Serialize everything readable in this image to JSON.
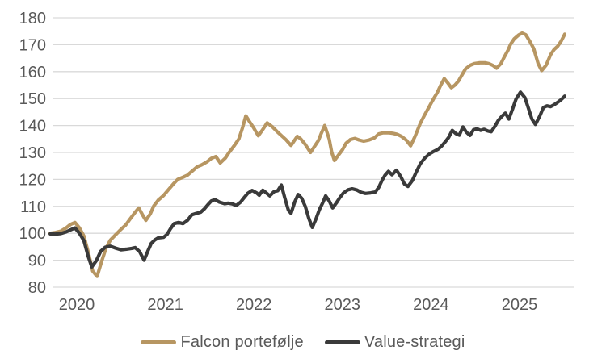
{
  "colors": {
    "background": "#ffffff",
    "gridline": "#d9d9d9",
    "axis_text": "#595959",
    "falcon": "#b79662",
    "value": "#3a3a3a"
  },
  "chart_data": {
    "type": "line",
    "title": "",
    "xlabel": "",
    "ylabel": "",
    "grid": "horizontal",
    "legend_position": "bottom-center",
    "y_axis": {
      "min": 80,
      "max": 180,
      "step": 10,
      "tick_labels": [
        "80",
        "90",
        "100",
        "110",
        "120",
        "130",
        "140",
        "150",
        "160",
        "170",
        "180"
      ]
    },
    "x_axis": {
      "ticks": [
        2020,
        2021,
        2022,
        2023,
        2024,
        2025
      ],
      "tick_labels": [
        "2020",
        "2021",
        "2022",
        "2023",
        "2024",
        "2025"
      ]
    },
    "series": [
      {
        "name": "Falcon portefølje",
        "color": "#b79662",
        "points": [
          [
            2019.7,
            100.0
          ],
          [
            2019.76,
            100.3
          ],
          [
            2019.82,
            100.8
          ],
          [
            2019.88,
            102.0
          ],
          [
            2019.93,
            103.3
          ],
          [
            2019.98,
            104.0
          ],
          [
            2020.03,
            102.0
          ],
          [
            2020.08,
            99.0
          ],
          [
            2020.13,
            93.0
          ],
          [
            2020.18,
            86.0
          ],
          [
            2020.23,
            84.0
          ],
          [
            2020.28,
            89.5
          ],
          [
            2020.33,
            94.5
          ],
          [
            2020.38,
            97.5
          ],
          [
            2020.44,
            99.5
          ],
          [
            2020.5,
            101.5
          ],
          [
            2020.55,
            103.0
          ],
          [
            2020.6,
            105.2
          ],
          [
            2020.66,
            107.8
          ],
          [
            2020.7,
            109.4
          ],
          [
            2020.74,
            107.0
          ],
          [
            2020.78,
            104.8
          ],
          [
            2020.83,
            107.2
          ],
          [
            2020.87,
            110.2
          ],
          [
            2020.92,
            112.3
          ],
          [
            2020.98,
            114.0
          ],
          [
            2021.03,
            116.0
          ],
          [
            2021.09,
            118.3
          ],
          [
            2021.14,
            120.0
          ],
          [
            2021.2,
            120.8
          ],
          [
            2021.25,
            121.6
          ],
          [
            2021.3,
            123.0
          ],
          [
            2021.36,
            124.7
          ],
          [
            2021.41,
            125.4
          ],
          [
            2021.47,
            126.5
          ],
          [
            2021.52,
            127.8
          ],
          [
            2021.57,
            128.5
          ],
          [
            2021.62,
            126.1
          ],
          [
            2021.68,
            128.0
          ],
          [
            2021.72,
            130.0
          ],
          [
            2021.78,
            132.6
          ],
          [
            2021.83,
            135.0
          ],
          [
            2021.87,
            139.0
          ],
          [
            2021.91,
            143.6
          ],
          [
            2021.95,
            141.5
          ],
          [
            2022.0,
            139.0
          ],
          [
            2022.05,
            136.2
          ],
          [
            2022.1,
            138.5
          ],
          [
            2022.15,
            141.0
          ],
          [
            2022.21,
            139.5
          ],
          [
            2022.26,
            137.8
          ],
          [
            2022.32,
            136.0
          ],
          [
            2022.36,
            134.8
          ],
          [
            2022.42,
            132.6
          ],
          [
            2022.49,
            136.0
          ],
          [
            2022.53,
            135.0
          ],
          [
            2022.58,
            133.0
          ],
          [
            2022.64,
            130.0
          ],
          [
            2022.68,
            132.0
          ],
          [
            2022.73,
            134.5
          ],
          [
            2022.76,
            137.0
          ],
          [
            2022.8,
            140.0
          ],
          [
            2022.85,
            135.0
          ],
          [
            2022.88,
            130.0
          ],
          [
            2022.91,
            127.0
          ],
          [
            2022.95,
            128.8
          ],
          [
            2023.0,
            131.0
          ],
          [
            2023.04,
            133.4
          ],
          [
            2023.09,
            134.8
          ],
          [
            2023.14,
            135.2
          ],
          [
            2023.19,
            134.6
          ],
          [
            2023.24,
            134.2
          ],
          [
            2023.3,
            134.6
          ],
          [
            2023.36,
            135.4
          ],
          [
            2023.41,
            136.9
          ],
          [
            2023.46,
            137.3
          ],
          [
            2023.52,
            137.3
          ],
          [
            2023.57,
            137.1
          ],
          [
            2023.62,
            136.7
          ],
          [
            2023.67,
            135.9
          ],
          [
            2023.72,
            134.6
          ],
          [
            2023.77,
            132.5
          ],
          [
            2023.82,
            136.0
          ],
          [
            2023.88,
            140.8
          ],
          [
            2023.93,
            144.0
          ],
          [
            2023.98,
            147.0
          ],
          [
            2024.03,
            150.0
          ],
          [
            2024.07,
            152.2
          ],
          [
            2024.11,
            155.0
          ],
          [
            2024.15,
            157.4
          ],
          [
            2024.19,
            155.8
          ],
          [
            2024.23,
            154.0
          ],
          [
            2024.27,
            155.0
          ],
          [
            2024.31,
            156.5
          ],
          [
            2024.35,
            158.8
          ],
          [
            2024.39,
            161.0
          ],
          [
            2024.44,
            162.3
          ],
          [
            2024.49,
            163.0
          ],
          [
            2024.55,
            163.3
          ],
          [
            2024.61,
            163.3
          ],
          [
            2024.66,
            162.9
          ],
          [
            2024.7,
            162.3
          ],
          [
            2024.74,
            161.3
          ],
          [
            2024.79,
            163.0
          ],
          [
            2024.83,
            165.6
          ],
          [
            2024.87,
            168.0
          ],
          [
            2024.9,
            170.2
          ],
          [
            2024.94,
            172.2
          ],
          [
            2024.99,
            173.6
          ],
          [
            2025.03,
            174.3
          ],
          [
            2025.07,
            173.7
          ],
          [
            2025.12,
            171.0
          ],
          [
            2025.16,
            168.6
          ],
          [
            2025.21,
            163.0
          ],
          [
            2025.25,
            160.4
          ],
          [
            2025.3,
            162.4
          ],
          [
            2025.35,
            166.3
          ],
          [
            2025.39,
            168.2
          ],
          [
            2025.43,
            169.4
          ],
          [
            2025.47,
            171.3
          ],
          [
            2025.51,
            173.9
          ]
        ]
      },
      {
        "name": "Value-strategi",
        "color": "#3a3a3a",
        "points": [
          [
            2019.7,
            99.8
          ],
          [
            2019.76,
            99.7
          ],
          [
            2019.82,
            99.9
          ],
          [
            2019.88,
            100.5
          ],
          [
            2019.93,
            101.3
          ],
          [
            2019.98,
            102.0
          ],
          [
            2020.03,
            100.0
          ],
          [
            2020.08,
            97.3
          ],
          [
            2020.13,
            91.4
          ],
          [
            2020.17,
            87.5
          ],
          [
            2020.22,
            89.8
          ],
          [
            2020.27,
            93.3
          ],
          [
            2020.32,
            94.8
          ],
          [
            2020.38,
            95.2
          ],
          [
            2020.44,
            94.5
          ],
          [
            2020.5,
            93.9
          ],
          [
            2020.56,
            94.1
          ],
          [
            2020.62,
            94.4
          ],
          [
            2020.66,
            94.7
          ],
          [
            2020.71,
            93.2
          ],
          [
            2020.76,
            90.0
          ],
          [
            2020.8,
            93.2
          ],
          [
            2020.84,
            96.2
          ],
          [
            2020.88,
            97.5
          ],
          [
            2020.92,
            98.3
          ],
          [
            2020.98,
            98.5
          ],
          [
            2021.02,
            99.6
          ],
          [
            2021.06,
            101.8
          ],
          [
            2021.1,
            103.6
          ],
          [
            2021.15,
            104.0
          ],
          [
            2021.2,
            103.6
          ],
          [
            2021.25,
            104.8
          ],
          [
            2021.3,
            106.9
          ],
          [
            2021.35,
            107.4
          ],
          [
            2021.4,
            107.8
          ],
          [
            2021.44,
            109.0
          ],
          [
            2021.48,
            110.6
          ],
          [
            2021.52,
            112.0
          ],
          [
            2021.56,
            112.5
          ],
          [
            2021.61,
            111.6
          ],
          [
            2021.67,
            111.0
          ],
          [
            2021.71,
            111.2
          ],
          [
            2021.76,
            110.9
          ],
          [
            2021.8,
            110.3
          ],
          [
            2021.85,
            111.6
          ],
          [
            2021.89,
            113.2
          ],
          [
            2021.93,
            114.8
          ],
          [
            2021.98,
            115.9
          ],
          [
            2022.03,
            115.0
          ],
          [
            2022.06,
            114.1
          ],
          [
            2022.1,
            116.0
          ],
          [
            2022.14,
            115.0
          ],
          [
            2022.18,
            113.9
          ],
          [
            2022.23,
            115.5
          ],
          [
            2022.27,
            115.8
          ],
          [
            2022.31,
            117.9
          ],
          [
            2022.35,
            113.0
          ],
          [
            2022.39,
            108.6
          ],
          [
            2022.42,
            107.4
          ],
          [
            2022.46,
            111.5
          ],
          [
            2022.5,
            114.4
          ],
          [
            2022.54,
            113.0
          ],
          [
            2022.58,
            110.0
          ],
          [
            2022.62,
            105.5
          ],
          [
            2022.66,
            102.2
          ],
          [
            2022.7,
            105.2
          ],
          [
            2022.74,
            108.8
          ],
          [
            2022.78,
            111.5
          ],
          [
            2022.81,
            113.9
          ],
          [
            2022.85,
            112.0
          ],
          [
            2022.89,
            109.4
          ],
          [
            2022.93,
            111.2
          ],
          [
            2022.97,
            113.2
          ],
          [
            2023.01,
            114.9
          ],
          [
            2023.06,
            116.1
          ],
          [
            2023.11,
            116.5
          ],
          [
            2023.16,
            116.1
          ],
          [
            2023.21,
            115.2
          ],
          [
            2023.26,
            114.8
          ],
          [
            2023.32,
            115.0
          ],
          [
            2023.37,
            115.3
          ],
          [
            2023.41,
            117.0
          ],
          [
            2023.45,
            119.8
          ],
          [
            2023.48,
            121.5
          ],
          [
            2023.52,
            123.0
          ],
          [
            2023.56,
            121.7
          ],
          [
            2023.61,
            123.4
          ],
          [
            2023.66,
            121.0
          ],
          [
            2023.7,
            118.3
          ],
          [
            2023.74,
            117.4
          ],
          [
            2023.79,
            119.6
          ],
          [
            2023.83,
            122.5
          ],
          [
            2023.88,
            125.8
          ],
          [
            2023.93,
            127.9
          ],
          [
            2023.98,
            129.4
          ],
          [
            2024.03,
            130.4
          ],
          [
            2024.08,
            131.2
          ],
          [
            2024.12,
            132.4
          ],
          [
            2024.16,
            133.9
          ],
          [
            2024.2,
            135.6
          ],
          [
            2024.24,
            138.2
          ],
          [
            2024.28,
            137.0
          ],
          [
            2024.32,
            136.4
          ],
          [
            2024.36,
            139.5
          ],
          [
            2024.4,
            137.5
          ],
          [
            2024.44,
            136.3
          ],
          [
            2024.48,
            138.4
          ],
          [
            2024.52,
            138.8
          ],
          [
            2024.56,
            138.2
          ],
          [
            2024.6,
            138.6
          ],
          [
            2024.64,
            138.0
          ],
          [
            2024.68,
            137.7
          ],
          [
            2024.72,
            139.6
          ],
          [
            2024.76,
            141.9
          ],
          [
            2024.8,
            143.4
          ],
          [
            2024.84,
            144.6
          ],
          [
            2024.88,
            142.4
          ],
          [
            2024.92,
            146.0
          ],
          [
            2024.96,
            149.8
          ],
          [
            2025.01,
            152.4
          ],
          [
            2025.06,
            150.4
          ],
          [
            2025.1,
            146.4
          ],
          [
            2025.14,
            142.4
          ],
          [
            2025.18,
            140.4
          ],
          [
            2025.23,
            143.6
          ],
          [
            2025.27,
            146.7
          ],
          [
            2025.31,
            147.3
          ],
          [
            2025.35,
            147.0
          ],
          [
            2025.39,
            147.7
          ],
          [
            2025.43,
            148.6
          ],
          [
            2025.47,
            149.6
          ],
          [
            2025.51,
            150.9
          ]
        ]
      }
    ]
  },
  "legend": {
    "falcon_label": "Falcon portefølje",
    "value_label": "Value-strategi"
  }
}
